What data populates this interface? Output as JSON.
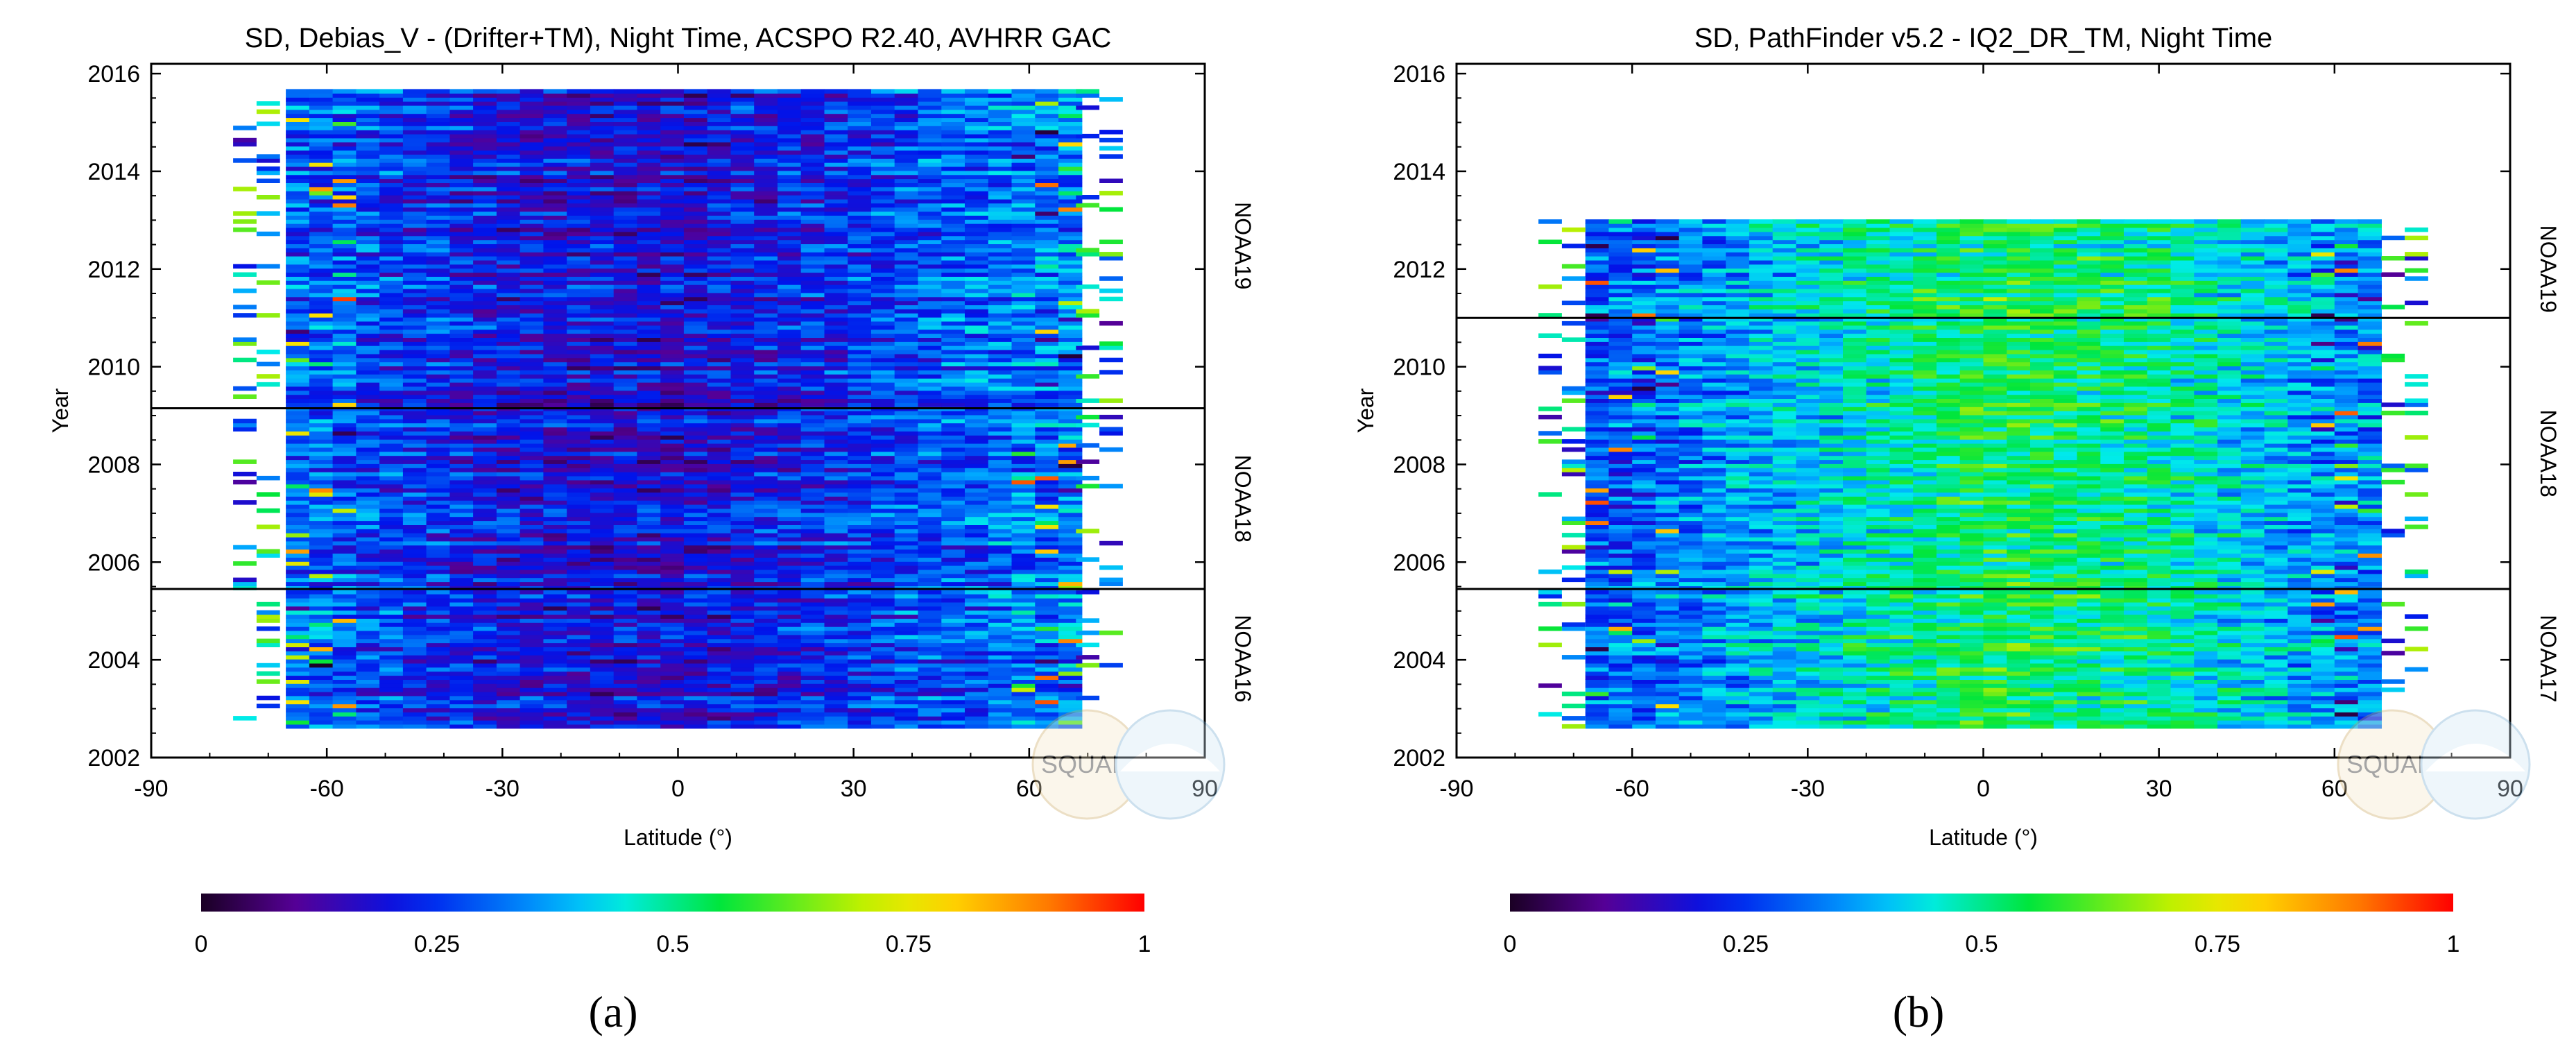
{
  "chart_data": [
    {
      "type": "heatmap",
      "panel_label": "(a)",
      "title": "SD, Debias_V - (Drifter+TM), Night Time, ACSPO R2.40,  AVHRR GAC",
      "xlabel": "Latitude (°)",
      "ylabel": "Year",
      "xlim": [
        -90,
        90
      ],
      "ylim": [
        2002,
        2016.2
      ],
      "x_ticks": [
        -90,
        -60,
        -30,
        0,
        30,
        60,
        90
      ],
      "y_ticks": [
        2002,
        2004,
        2006,
        2008,
        2010,
        2012,
        2014,
        2016
      ],
      "grid": false,
      "colorbar": {
        "label_ticks": [
          "0",
          "0.25",
          "0.5",
          "0.75",
          "1"
        ],
        "range": [
          0,
          1
        ],
        "colormap": "rainbow (black-purple-blue-cyan-green-yellow-red)"
      },
      "satellite_periods": [
        {
          "name": "NOAA16",
          "from": 2002.6,
          "to": 2005.45
        },
        {
          "name": "NOAA18",
          "from": 2005.45,
          "to": 2009.15
        },
        {
          "name": "NOAA19",
          "from": 2009.15,
          "to": 2015.8
        }
      ],
      "boundary_years": [
        2005.45,
        2009.15
      ],
      "data_extent": {
        "lat_from": -67,
        "lat_to": 67,
        "year_from": 2002.6,
        "year_to": 2015.6
      },
      "typical_sd_by_latitude": {
        "lat": [
          -60,
          -30,
          0,
          30,
          60
        ],
        "sd": [
          0.3,
          0.2,
          0.18,
          0.25,
          0.33
        ]
      },
      "watermark": "SQUAM"
    },
    {
      "type": "heatmap",
      "panel_label": "(b)",
      "title": "SD, PathFinder v5.2 - IQ2_DR_TM, Night Time",
      "xlabel": "Latitude (°)",
      "ylabel": "Year",
      "xlim": [
        -90,
        90
      ],
      "ylim": [
        2002,
        2016.2
      ],
      "x_ticks": [
        -90,
        -60,
        -30,
        0,
        30,
        60,
        90
      ],
      "y_ticks": [
        2002,
        2004,
        2006,
        2008,
        2010,
        2012,
        2014,
        2016
      ],
      "grid": false,
      "colorbar": {
        "label_ticks": [
          "0",
          "0.25",
          "0.5",
          "0.75",
          "1"
        ],
        "range": [
          0,
          1
        ],
        "colormap": "rainbow (black-purple-blue-cyan-green-yellow-red)"
      },
      "satellite_periods": [
        {
          "name": "NOAA17",
          "from": 2002.6,
          "to": 2005.45
        },
        {
          "name": "NOAA18",
          "from": 2005.45,
          "to": 2011.0
        },
        {
          "name": "NOAA19",
          "from": 2011.0,
          "to": 2013.0
        }
      ],
      "boundary_years": [
        2005.45,
        2011.0
      ],
      "data_extent": {
        "lat_from": -68,
        "lat_to": 68,
        "year_from": 2002.6,
        "year_to": 2013.0
      },
      "typical_sd_by_latitude": {
        "lat": [
          -60,
          -30,
          0,
          30,
          60
        ],
        "sd": [
          0.3,
          0.42,
          0.55,
          0.5,
          0.35
        ]
      },
      "watermark": "SQUAM"
    }
  ]
}
